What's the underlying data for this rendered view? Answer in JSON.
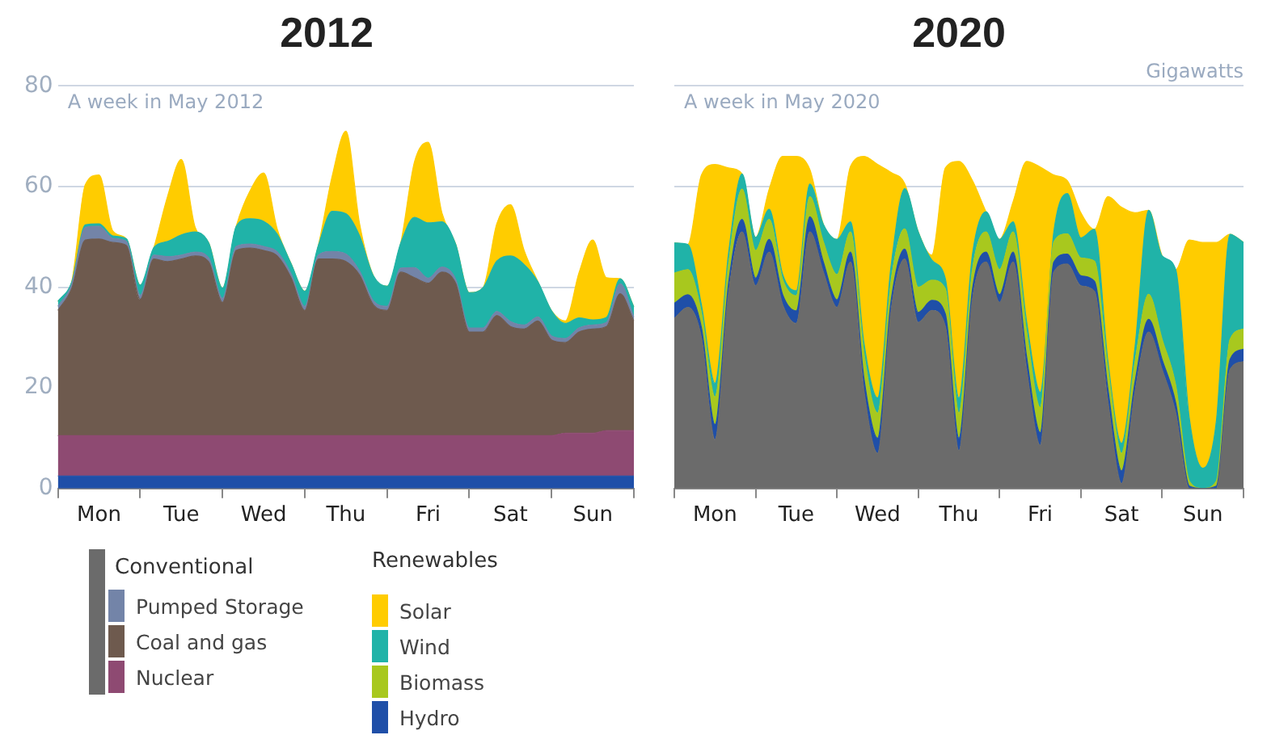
{
  "chart_data": [
    {
      "type": "area",
      "title": "2012",
      "subtitle": "A week in May 2012",
      "stacked": true,
      "grid": "y",
      "legend": "bottom",
      "categories": [
        null,
        null,
        null,
        "Mon",
        null,
        null,
        null,
        null,
        null,
        "Tue",
        null,
        null,
        null,
        null,
        null,
        "Wed",
        null,
        null,
        null,
        null,
        null,
        "Thu",
        null,
        null,
        null,
        null,
        null,
        "Fri",
        null,
        null,
        null,
        null,
        null,
        "Sat",
        null,
        null,
        null,
        null,
        null,
        "Sun",
        null,
        null,
        null
      ],
      "ylim": [
        0,
        80
      ],
      "yticks": [
        0,
        20,
        40,
        60,
        80
      ],
      "series": [
        {
          "color": "#1f4fa8",
          "values": [
            2.5,
            2.5,
            2.5,
            2.5,
            2.5,
            2.5,
            2.5,
            2.5,
            2.5,
            2.5,
            2.5,
            2.5,
            2.5,
            2.5,
            2.5,
            2.5,
            2.5,
            2.5,
            2.5,
            2.5,
            2.5,
            2.5,
            2.5,
            2.5,
            2.5,
            2.5,
            2.5,
            2.5,
            2.5,
            2.5,
            2.5,
            2.5,
            2.5,
            2.5,
            2.5,
            2.5,
            2.5,
            2.5,
            2.5,
            2.5,
            2.5,
            2.5,
            2.5
          ]
        },
        {
          "name": "Nuclear",
          "color": "#8e4a72",
          "values": [
            8,
            8,
            8,
            8,
            8,
            8,
            8,
            8,
            8,
            8,
            8,
            8,
            8,
            8,
            8,
            8,
            8,
            8,
            8,
            8,
            8,
            8,
            8,
            8,
            8,
            8,
            8,
            8,
            8,
            8,
            8,
            8,
            8,
            8,
            8,
            8,
            8,
            8.5,
            8.5,
            8.5,
            9,
            9,
            9
          ]
        },
        {
          "name": "Coal and gas",
          "color": "#6e5a4e",
          "values": [
            24.9,
            29.2,
            38.9,
            39.1,
            38.4,
            37.8,
            27.1,
            35.1,
            34.6,
            35.1,
            35.7,
            34.5,
            26.5,
            36.8,
            37.3,
            36.8,
            35.7,
            31.4,
            24.9,
            35.1,
            35.1,
            34.6,
            31.9,
            26,
            24.9,
            32.5,
            31.4,
            30.3,
            32.5,
            30.3,
            20.6,
            20.6,
            23.9,
            21.7,
            21.2,
            22.8,
            19,
            18,
            20.1,
            20.7,
            20.7,
            27.2,
            21.8
          ]
        },
        {
          "name": "Pumped Storage",
          "color": "#7384a8",
          "values": [
            0.8,
            0.8,
            2.5,
            2.5,
            0.8,
            0.8,
            0.8,
            0.8,
            1,
            0.8,
            0.8,
            0.8,
            0.8,
            0.8,
            0.8,
            0.8,
            0.8,
            0.8,
            0.8,
            0.8,
            1.5,
            1.5,
            0.8,
            0.8,
            0.8,
            0.8,
            2,
            1,
            1,
            0.8,
            0.8,
            0.8,
            0.8,
            1,
            0.8,
            0.8,
            0.8,
            0.8,
            0.8,
            0.8,
            0.8,
            2,
            0.8
          ]
        },
        {
          "color": "#20b3a8",
          "values": [
            1,
            0.5,
            0.5,
            0.5,
            0.5,
            0.5,
            2,
            1.5,
            3,
            4,
            4,
            3,
            2,
            4,
            5,
            5,
            3.5,
            2,
            3,
            2,
            8,
            8,
            7,
            5,
            4,
            5,
            10,
            11,
            9,
            7,
            7,
            8,
            10,
            13,
            12,
            7,
            5,
            3,
            2,
            1,
            1,
            1,
            2
          ]
        },
        {
          "color": "#ffcc00",
          "values": [
            0,
            0,
            8,
            9.7,
            1,
            0,
            0,
            0,
            9,
            15,
            1,
            0,
            0,
            0,
            5.5,
            9.6,
            1,
            0,
            0,
            0,
            7,
            16.4,
            2.4,
            0,
            0,
            0,
            11,
            16,
            1.8,
            0,
            0,
            0,
            7.4,
            10.2,
            2.8,
            0,
            0,
            0.5,
            9,
            15.9,
            7.9,
            0,
            0
          ]
        }
      ]
    },
    {
      "type": "area",
      "title": "2020",
      "subtitle": "A week in May 2020",
      "ylabel": "Gigawatts",
      "legend_title": "Renewables",
      "stacked": true,
      "grid": "y",
      "legend": "bottom",
      "tick_labels": "x",
      "categories": [
        null,
        null,
        null,
        "Mon",
        null,
        null,
        null,
        null,
        null,
        "Tue",
        null,
        null,
        null,
        null,
        null,
        "Wed",
        null,
        null,
        null,
        null,
        null,
        "Thu",
        null,
        null,
        null,
        null,
        null,
        "Fri",
        null,
        null,
        null,
        null,
        null,
        "Sat",
        null,
        null,
        null,
        null,
        null,
        "Sun",
        null,
        null,
        null
      ],
      "ylim": [
        0,
        80
      ],
      "yticks": [
        0,
        20,
        40,
        60,
        80
      ],
      "series": [
        {
          "name": "Conventional",
          "color": "#6b6b6b",
          "values": [
            33.8,
            36,
            30,
            9.7,
            38.7,
            51,
            40.3,
            47,
            36.5,
            32.8,
            51,
            43,
            36,
            45,
            19.3,
            7,
            35.4,
            45.6,
            33,
            35.4,
            32.2,
            7.5,
            37.6,
            45,
            37,
            45,
            23.6,
            8.6,
            43,
            44.6,
            40.3,
            39.2,
            17.2,
            1,
            19.3,
            31.1,
            23.6,
            15,
            0,
            0,
            0,
            23.6,
            25.2
          ]
        },
        {
          "name": "Hydro",
          "color": "#1f4fa8",
          "values": [
            3,
            2.5,
            2,
            3,
            2,
            2.5,
            1.5,
            2.5,
            2,
            2.5,
            3,
            2,
            1.5,
            2,
            2.5,
            3,
            2,
            2,
            2,
            2,
            2.5,
            2.5,
            2,
            2,
            1.5,
            2,
            2.5,
            2.5,
            2,
            2,
            2,
            2,
            2.5,
            2.5,
            2,
            2.5,
            2,
            2,
            0.5,
            0,
            0.5,
            2,
            2.5
          ]
        },
        {
          "name": "Biomass",
          "color": "#a8c81e",
          "values": [
            6,
            5,
            3,
            5.5,
            4,
            6,
            5.5,
            4,
            3,
            3,
            4,
            4,
            5,
            4,
            5,
            5,
            4,
            4,
            5,
            4,
            5,
            5,
            4,
            4,
            5,
            4,
            5,
            5,
            4,
            4,
            3.5,
            4,
            4,
            3.5,
            4,
            5,
            4,
            3.5,
            1,
            0,
            1,
            4,
            4
          ]
        },
        {
          "name": "Wind",
          "color": "#20b3a8",
          "values": [
            6,
            5,
            1.5,
            2.7,
            2,
            3,
            2.6,
            2,
            1,
            1,
            2.5,
            3.5,
            7,
            2,
            2,
            3,
            3,
            8,
            11,
            4,
            2,
            3,
            3,
            4,
            6,
            2,
            2,
            3,
            2,
            8,
            4,
            6.3,
            1.5,
            2,
            3,
            16.7,
            16.6,
            23,
            12.5,
            4,
            12,
            20.9,
            17.2
          ]
        },
        {
          "name": "Solar",
          "color": "#ffcc00",
          "values": [
            0,
            0,
            25.8,
            43.5,
            17,
            0,
            0,
            4,
            23.5,
            26.7,
            2.9,
            0,
            0,
            11,
            37.2,
            46.4,
            18.4,
            1,
            0,
            1,
            22,
            47,
            14.6,
            0,
            0,
            4,
            31.9,
            44.8,
            11.3,
            2.6,
            5,
            0,
            32.8,
            46.9,
            26.5,
            0,
            0,
            0,
            35.4,
            44.9,
            35.4,
            0,
            0
          ]
        }
      ]
    }
  ]
}
